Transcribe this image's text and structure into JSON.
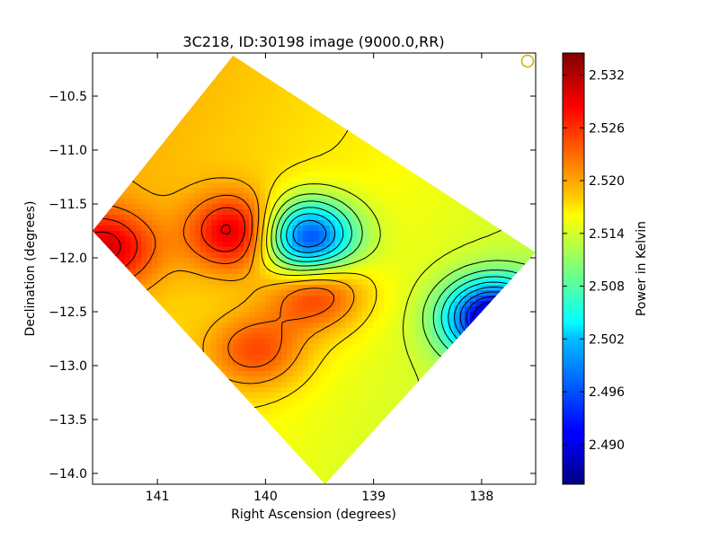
{
  "chart_data": {
    "type": "heatmap",
    "title": "3C218, ID:30198 image (9000.0,RR)",
    "xlabel": "Right Ascension (degrees)",
    "ylabel": "Declination (degrees)",
    "x_axis_inverted": true,
    "xlim": [
      141.6,
      137.5
    ],
    "ylim": [
      -14.1,
      -10.1
    ],
    "x_ticks": [
      141,
      140,
      139,
      138
    ],
    "y_ticks": [
      -10.5,
      -11.0,
      -11.5,
      -12.0,
      -12.5,
      -13.0,
      -13.5,
      -14.0
    ],
    "x_tick_labels": [
      "141",
      "140",
      "139",
      "138"
    ],
    "y_tick_labels": [
      "−10.5",
      "−11.0",
      "−11.5",
      "−12.0",
      "−12.5",
      "−13.0",
      "−13.5",
      "−14.0"
    ],
    "colormap": "jet",
    "contours": true,
    "colorbar": {
      "label": "Power in Kelvin",
      "vmin": 2.4855,
      "vmax": 2.5345,
      "ticks": [
        2.49,
        2.496,
        2.502,
        2.508,
        2.514,
        2.52,
        2.526,
        2.532
      ],
      "tick_labels": [
        "2.490",
        "2.496",
        "2.502",
        "2.508",
        "2.514",
        "2.520",
        "2.526",
        "2.532"
      ]
    },
    "features": [
      {
        "kind": "max",
        "ra": 140.25,
        "dec": -11.75,
        "value": 2.53
      },
      {
        "kind": "max",
        "ra": 141.5,
        "dec": -11.9,
        "value": 2.527
      },
      {
        "kind": "min",
        "ra": 139.65,
        "dec": -11.8,
        "value": 2.492
      },
      {
        "kind": "min",
        "ra": 137.9,
        "dec": -12.55,
        "value": 2.488
      },
      {
        "kind": "max",
        "ra": 139.55,
        "dec": -12.3,
        "value": 2.526
      },
      {
        "kind": "max",
        "ra": 140.1,
        "dec": -12.85,
        "value": 2.524
      }
    ],
    "beam_marker_color": "#c8b400",
    "colors": {
      "frame": "#000000",
      "background": "#ffffff"
    }
  }
}
